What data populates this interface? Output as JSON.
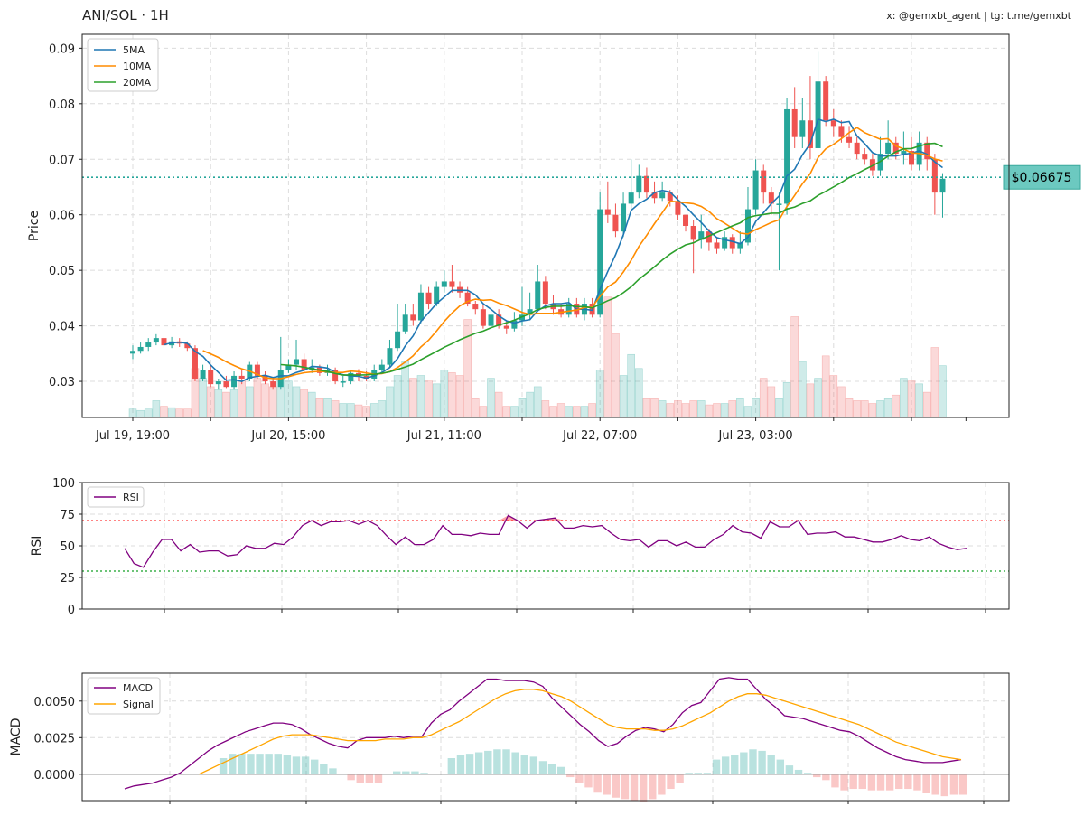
{
  "header": {
    "title": "ANI/SOL · 1H",
    "watermark": "x: @gemxbt_agent | tg: t.me/gemxbt"
  },
  "colors": {
    "up": "#26a69a",
    "down": "#ef5350",
    "ma5": "#1f77b4",
    "ma10": "#ff8c00",
    "ma20": "#2ca02c",
    "rsi": "#800080",
    "macd": "#800080",
    "signal": "#ffa500",
    "price_tag_bg": "#6cc9c0"
  },
  "chart_data": [
    {
      "type": "candlestick",
      "panel": "price",
      "ylabel": "Price",
      "ylim": [
        0.0235,
        0.0925
      ],
      "yticks": [
        "0.03",
        "0.04",
        "0.05",
        "0.06",
        "0.07",
        "0.08",
        "0.09"
      ],
      "ytick_values": [
        0.03,
        0.04,
        0.05,
        0.06,
        0.07,
        0.08,
        0.09
      ],
      "xtick_labels": [
        "Jul 19, 19:00",
        "Jul 20, 15:00",
        "Jul 21, 11:00",
        "Jul 22, 07:00",
        "Jul 23, 03:00"
      ],
      "xtick_index": [
        0,
        20,
        40,
        60,
        80
      ],
      "current_price": 0.06675,
      "current_price_label": "$0.06675",
      "legend": [
        "5MA",
        "10MA",
        "20MA"
      ],
      "legend_position": "top-left",
      "grid": true,
      "close": [
        0.0355,
        0.0362,
        0.037,
        0.0378,
        0.0365,
        0.0372,
        0.0368,
        0.036,
        0.0305,
        0.032,
        0.0295,
        0.03,
        0.029,
        0.031,
        0.0305,
        0.033,
        0.031,
        0.03,
        0.029,
        0.032,
        0.033,
        0.034,
        0.032,
        0.0325,
        0.0315,
        0.032,
        0.03,
        0.03,
        0.0315,
        0.031,
        0.0305,
        0.032,
        0.033,
        0.036,
        0.039,
        0.042,
        0.041,
        0.046,
        0.044,
        0.047,
        0.048,
        0.047,
        0.046,
        0.044,
        0.043,
        0.04,
        0.042,
        0.04,
        0.0395,
        0.041,
        0.042,
        0.043,
        0.048,
        0.044,
        0.043,
        0.042,
        0.044,
        0.042,
        0.044,
        0.042,
        0.061,
        0.06,
        0.057,
        0.062,
        0.064,
        0.067,
        0.064,
        0.063,
        0.064,
        0.0625,
        0.06,
        0.058,
        0.0555,
        0.057,
        0.055,
        0.054,
        0.056,
        0.054,
        0.055,
        0.061,
        0.068,
        0.064,
        0.062,
        0.062,
        0.079,
        0.074,
        0.077,
        0.072,
        0.084,
        0.077,
        0.076,
        0.074,
        0.073,
        0.071,
        0.07,
        0.068,
        0.071,
        0.073,
        0.071,
        0.0715,
        0.069,
        0.073,
        0.07,
        0.064,
        0.0665
      ],
      "open": [
        0.035,
        0.0355,
        0.0362,
        0.037,
        0.0378,
        0.0365,
        0.0372,
        0.0368,
        0.036,
        0.0305,
        0.032,
        0.0295,
        0.03,
        0.029,
        0.031,
        0.0305,
        0.033,
        0.031,
        0.03,
        0.029,
        0.032,
        0.033,
        0.034,
        0.032,
        0.0325,
        0.0315,
        0.032,
        0.03,
        0.03,
        0.0315,
        0.031,
        0.0305,
        0.032,
        0.033,
        0.036,
        0.039,
        0.042,
        0.041,
        0.046,
        0.044,
        0.047,
        0.048,
        0.047,
        0.046,
        0.044,
        0.043,
        0.04,
        0.042,
        0.04,
        0.0395,
        0.041,
        0.042,
        0.043,
        0.048,
        0.044,
        0.043,
        0.042,
        0.044,
        0.042,
        0.044,
        0.042,
        0.061,
        0.06,
        0.057,
        0.062,
        0.064,
        0.067,
        0.064,
        0.063,
        0.064,
        0.0625,
        0.06,
        0.058,
        0.0555,
        0.057,
        0.055,
        0.054,
        0.056,
        0.054,
        0.055,
        0.061,
        0.068,
        0.064,
        0.062,
        0.062,
        0.079,
        0.074,
        0.077,
        0.072,
        0.084,
        0.077,
        0.076,
        0.074,
        0.073,
        0.071,
        0.07,
        0.068,
        0.071,
        0.073,
        0.071,
        0.0715,
        0.069,
        0.073,
        0.07,
        0.064
      ],
      "high": [
        0.0365,
        0.037,
        0.0378,
        0.0385,
        0.0382,
        0.038,
        0.0378,
        0.0372,
        0.0365,
        0.033,
        0.033,
        0.0305,
        0.031,
        0.0318,
        0.032,
        0.0335,
        0.0335,
        0.0318,
        0.0305,
        0.038,
        0.034,
        0.0375,
        0.035,
        0.034,
        0.033,
        0.033,
        0.0325,
        0.031,
        0.032,
        0.0322,
        0.0318,
        0.033,
        0.034,
        0.0375,
        0.044,
        0.044,
        0.044,
        0.0475,
        0.047,
        0.048,
        0.05,
        0.051,
        0.048,
        0.047,
        0.0445,
        0.044,
        0.0435,
        0.043,
        0.041,
        0.0425,
        0.047,
        0.046,
        0.051,
        0.049,
        0.0455,
        0.044,
        0.045,
        0.045,
        0.045,
        0.045,
        0.064,
        0.066,
        0.062,
        0.064,
        0.07,
        0.069,
        0.0685,
        0.066,
        0.066,
        0.0645,
        0.0635,
        0.06,
        0.059,
        0.06,
        0.0575,
        0.056,
        0.057,
        0.0565,
        0.057,
        0.065,
        0.07,
        0.069,
        0.065,
        0.064,
        0.081,
        0.083,
        0.081,
        0.085,
        0.0895,
        0.085,
        0.079,
        0.077,
        0.076,
        0.074,
        0.072,
        0.071,
        0.074,
        0.077,
        0.074,
        0.075,
        0.074,
        0.075,
        0.074,
        0.071,
        0.0675
      ],
      "low": [
        0.034,
        0.035,
        0.0355,
        0.0365,
        0.036,
        0.036,
        0.0362,
        0.0355,
        0.03,
        0.03,
        0.029,
        0.0285,
        0.0288,
        0.0285,
        0.0295,
        0.03,
        0.0305,
        0.0295,
        0.0285,
        0.0285,
        0.0315,
        0.032,
        0.0315,
        0.0315,
        0.031,
        0.031,
        0.0295,
        0.029,
        0.0295,
        0.03,
        0.03,
        0.03,
        0.0315,
        0.0325,
        0.0355,
        0.0385,
        0.04,
        0.0405,
        0.043,
        0.0435,
        0.046,
        0.046,
        0.045,
        0.0435,
        0.042,
        0.0395,
        0.0395,
        0.0395,
        0.0385,
        0.039,
        0.04,
        0.041,
        0.0425,
        0.043,
        0.042,
        0.0415,
        0.0415,
        0.0415,
        0.041,
        0.0415,
        0.0415,
        0.0585,
        0.056,
        0.056,
        0.061,
        0.063,
        0.063,
        0.062,
        0.0625,
        0.0615,
        0.059,
        0.057,
        0.0495,
        0.054,
        0.0535,
        0.053,
        0.0535,
        0.053,
        0.053,
        0.0545,
        0.06,
        0.062,
        0.06,
        0.05,
        0.06,
        0.072,
        0.072,
        0.07,
        0.072,
        0.076,
        0.074,
        0.073,
        0.072,
        0.07,
        0.069,
        0.067,
        0.067,
        0.07,
        0.07,
        0.069,
        0.068,
        0.068,
        0.068,
        0.06,
        0.0595
      ],
      "volume_rel": [
        0.06,
        0.05,
        0.06,
        0.12,
        0.08,
        0.07,
        0.06,
        0.06,
        0.35,
        0.28,
        0.22,
        0.2,
        0.18,
        0.2,
        0.26,
        0.22,
        0.28,
        0.24,
        0.22,
        0.3,
        0.26,
        0.22,
        0.2,
        0.18,
        0.14,
        0.14,
        0.12,
        0.1,
        0.1,
        0.09,
        0.08,
        0.1,
        0.12,
        0.22,
        0.3,
        0.4,
        0.28,
        0.3,
        0.26,
        0.24,
        0.34,
        0.32,
        0.3,
        0.7,
        0.14,
        0.08,
        0.28,
        0.18,
        0.08,
        0.08,
        0.14,
        0.18,
        0.22,
        0.12,
        0.08,
        0.1,
        0.08,
        0.08,
        0.08,
        0.1,
        0.34,
        0.86,
        0.6,
        0.3,
        0.45,
        0.35,
        0.14,
        0.14,
        0.12,
        0.1,
        0.12,
        0.1,
        0.12,
        0.12,
        0.09,
        0.1,
        0.1,
        0.12,
        0.14,
        0.08,
        0.14,
        0.28,
        0.22,
        0.14,
        0.25,
        0.72,
        0.4,
        0.24,
        0.28,
        0.44,
        0.3,
        0.22,
        0.14,
        0.12,
        0.12,
        0.1,
        0.12,
        0.14,
        0.16,
        0.28,
        0.26,
        0.24,
        0.18,
        0.5,
        0.37
      ]
    },
    {
      "type": "line",
      "panel": "rsi",
      "ylabel": "RSI",
      "ylim": [
        0,
        100
      ],
      "yticks": [
        "0",
        "25",
        "50",
        "75",
        "100"
      ],
      "ytick_values": [
        0,
        25,
        50,
        75,
        100
      ],
      "overbought": 70,
      "oversold": 30,
      "legend": [
        "RSI"
      ],
      "legend_position": "top-left",
      "grid": true,
      "series": [
        {
          "name": "RSI",
          "values": [
            48,
            36,
            33,
            45,
            55,
            55,
            46,
            51,
            45,
            46,
            46,
            42,
            43,
            50,
            48,
            48,
            52,
            51,
            57,
            66,
            70,
            66,
            69,
            69,
            70,
            67,
            70,
            66,
            58,
            51,
            57,
            51,
            51,
            55,
            66,
            59,
            59,
            58,
            60,
            59,
            59,
            74,
            70,
            64,
            70,
            71,
            72,
            64,
            64,
            66,
            65,
            66,
            60,
            55,
            54,
            55,
            49,
            54,
            54,
            50,
            53,
            49,
            49,
            55,
            59,
            66,
            61,
            60,
            56,
            69,
            65,
            65,
            70,
            59,
            60,
            60,
            61,
            57,
            57,
            55,
            53,
            53,
            55,
            58,
            55,
            54,
            57,
            52,
            49,
            47,
            48
          ]
        }
      ]
    },
    {
      "type": "line",
      "panel": "macd",
      "ylabel": "MACD",
      "ylim": [
        -0.0018,
        0.0069
      ],
      "yticks": [
        "0.0000",
        "0.0025",
        "0.0050"
      ],
      "ytick_values": [
        0,
        0.0025,
        0.005
      ],
      "legend": [
        "MACD",
        "Signal"
      ],
      "legend_position": "top-left",
      "grid": true,
      "series": [
        {
          "name": "MACD",
          "values": [
            -0.001,
            -0.0008,
            -0.0007,
            -0.0006,
            -0.0004,
            -0.0002,
            0.0001,
            0.0006,
            0.0011,
            0.0016,
            0.002,
            0.0023,
            0.0026,
            0.0029,
            0.0031,
            0.0033,
            0.0035,
            0.0035,
            0.0034,
            0.0031,
            0.0027,
            0.0024,
            0.0021,
            0.0019,
            0.0018,
            0.0023,
            0.0025,
            0.0025,
            0.0025,
            0.0026,
            0.0025,
            0.0026,
            0.0026,
            0.0035,
            0.0041,
            0.0044,
            0.005,
            0.0055,
            0.006,
            0.0065,
            0.0065,
            0.0064,
            0.0064,
            0.0064,
            0.0063,
            0.006,
            0.0052,
            0.0046,
            0.004,
            0.0034,
            0.0029,
            0.0023,
            0.0019,
            0.0021,
            0.0026,
            0.003,
            0.0032,
            0.0031,
            0.0029,
            0.0034,
            0.0042,
            0.0047,
            0.0049,
            0.0057,
            0.0065,
            0.0066,
            0.0065,
            0.0065,
            0.0058,
            0.0051,
            0.0046,
            0.004,
            0.0039,
            0.0038,
            0.0036,
            0.0034,
            0.0032,
            0.003,
            0.0029,
            0.0026,
            0.0022,
            0.0018,
            0.0015,
            0.0012,
            0.001,
            0.0009,
            0.0008,
            0.0008,
            0.0008,
            0.0009,
            0.001
          ]
        },
        {
          "name": "Signal",
          "values": [
            null,
            null,
            null,
            null,
            null,
            null,
            null,
            null,
            0.0,
            0.0003,
            0.0006,
            0.0009,
            0.0012,
            0.0015,
            0.0018,
            0.0021,
            0.0024,
            0.0026,
            0.0027,
            0.0027,
            0.0027,
            0.0026,
            0.0025,
            0.0024,
            0.0023,
            0.0023,
            0.0023,
            0.0023,
            0.0024,
            0.0024,
            0.0024,
            0.0025,
            0.0025,
            0.0027,
            0.003,
            0.0033,
            0.0036,
            0.004,
            0.0044,
            0.0048,
            0.0052,
            0.0055,
            0.0057,
            0.0058,
            0.0058,
            0.0057,
            0.0055,
            0.0053,
            0.005,
            0.0046,
            0.0042,
            0.0038,
            0.0034,
            0.0032,
            0.0031,
            0.0031,
            0.0031,
            0.003,
            0.003,
            0.0031,
            0.0033,
            0.0036,
            0.0039,
            0.0042,
            0.0046,
            0.005,
            0.0053,
            0.0055,
            0.0055,
            0.0054,
            0.0052,
            0.005,
            0.0048,
            0.0046,
            0.0044,
            0.0042,
            0.004,
            0.0038,
            0.0036,
            0.0034,
            0.0031,
            0.0028,
            0.0025,
            0.0022,
            0.002,
            0.0018,
            0.0016,
            0.0014,
            0.0012,
            0.0011,
            0.001
          ]
        }
      ],
      "histogram": [
        0.0,
        0.0011,
        0.0014,
        0.0014,
        0.0014,
        0.0014,
        0.0014,
        0.0014,
        0.0013,
        0.0012,
        0.0012,
        0.001,
        0.0007,
        0.0004,
        0.0,
        -0.0004,
        -0.0006,
        -0.0006,
        -0.0006,
        0.0,
        0.0002,
        0.0002,
        0.0002,
        0.0001,
        0.0,
        0.0,
        0.0011,
        0.0013,
        0.0014,
        0.0015,
        0.0016,
        0.0017,
        0.0017,
        0.0015,
        0.0013,
        0.0012,
        0.0009,
        0.0007,
        0.0005,
        -0.0002,
        -0.0006,
        -0.0009,
        -0.0012,
        -0.0014,
        -0.0016,
        -0.0017,
        -0.0018,
        -0.0019,
        -0.0017,
        -0.0014,
        -0.001,
        -0.0006,
        0.0001,
        0.0001,
        0.0001,
        0.001,
        0.0012,
        0.0013,
        0.0015,
        0.0017,
        0.0016,
        0.0013,
        0.001,
        0.0006,
        0.0003,
        0.0001,
        -0.0002,
        -0.0004,
        -0.0009,
        -0.0011,
        -0.001,
        -0.001,
        -0.0011,
        -0.0011,
        -0.0011,
        -0.001,
        -0.001,
        -0.0011,
        -0.0013,
        -0.0014,
        -0.0015,
        -0.0014,
        -0.0014
      ]
    }
  ]
}
